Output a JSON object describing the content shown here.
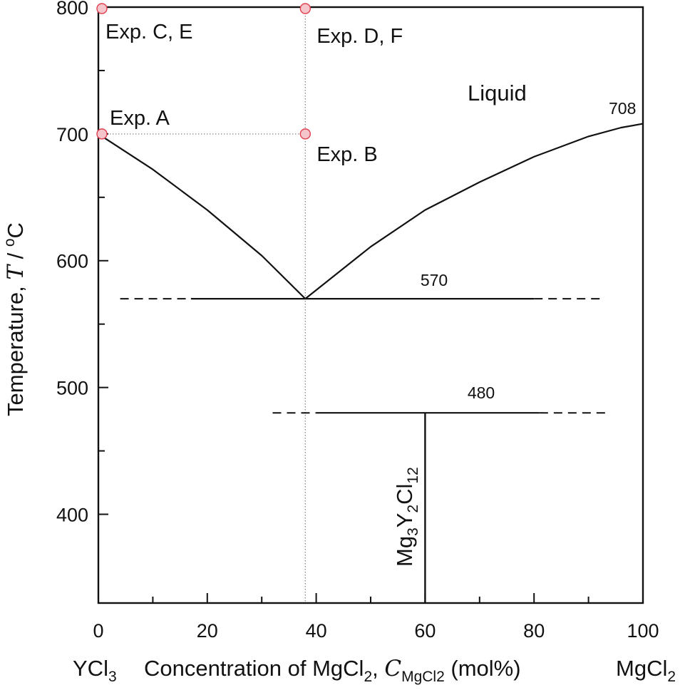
{
  "chart_data": {
    "type": "line",
    "title": "",
    "xlabel": {
      "left_end": "YCl",
      "left_end_sub": "3",
      "main": "Concentration of MgCl",
      "main_sub": "2",
      "sep": ", ",
      "symbol": "C",
      "symbol_sub": "MgCl2",
      "units": " (mol%)",
      "right_end": "MgCl",
      "right_end_sub": "2"
    },
    "ylabel": {
      "main": "Temperature, ",
      "symbol": "T",
      "units_pre": " / ",
      "units_sup": "o",
      "units_post": "C"
    },
    "xlim": [
      0,
      100
    ],
    "ylim": [
      330,
      800
    ],
    "x_ticks": [
      0,
      20,
      40,
      60,
      80,
      100
    ],
    "x_minor_ticks": [
      10,
      30,
      50,
      70,
      90
    ],
    "y_ticks": [
      400,
      500,
      600,
      700,
      800
    ],
    "y_minor_ticks": [
      450,
      550,
      650,
      750
    ],
    "grid": false,
    "liquidus_left": {
      "x": [
        0,
        10,
        20,
        30,
        38
      ],
      "y": [
        700,
        672,
        640,
        604,
        570
      ]
    },
    "liquidus_right": {
      "x": [
        38,
        50,
        60,
        70,
        80,
        90,
        96,
        100
      ],
      "y": [
        570,
        611,
        640,
        662,
        682,
        698,
        705,
        708
      ]
    },
    "eutectic": {
      "temp": 570,
      "label": "570",
      "solid_from": 17,
      "solid_to": 80,
      "dash_from": 4,
      "dash_to": 93
    },
    "peritectic": {
      "temp": 480,
      "label": "480",
      "solid_from": 40,
      "solid_to": 81,
      "dash_from": 32,
      "dash_to": 94
    },
    "compound": {
      "x": 60,
      "y_from": 330,
      "y_to": 480,
      "label_parts": [
        [
          "Mg",
          "3"
        ],
        [
          "Y",
          "2"
        ],
        [
          "Cl",
          "12"
        ]
      ]
    },
    "guide_vertical_x": 38,
    "guide_horizontal": {
      "y": 700,
      "from": 0,
      "to": 38
    },
    "melting_point_label": "708",
    "region_label": "Liquid",
    "experiments": [
      {
        "label": "Exp. A",
        "x": 0,
        "y": 700
      },
      {
        "label": "Exp. B",
        "x": 38,
        "y": 700
      },
      {
        "label": "Exp. C, E",
        "x": 0,
        "y": 800
      },
      {
        "label": "Exp. D, F",
        "x": 38,
        "y": 800
      }
    ],
    "colors": {
      "line": "#111111",
      "guide": "#888888",
      "marker_fill": "#f4c6cc",
      "marker_stroke": "#e0404f"
    }
  }
}
